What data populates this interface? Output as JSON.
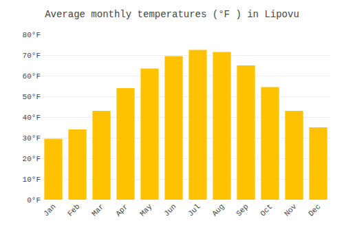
{
  "chart_data": {
    "type": "bar",
    "title": "Average monthly temperatures (°F ) in Lipovu",
    "categories": [
      "Jan",
      "Feb",
      "Mar",
      "Apr",
      "May",
      "Jun",
      "Jul",
      "Aug",
      "Sep",
      "Oct",
      "Nov",
      "Dec"
    ],
    "values": [
      29.5,
      34,
      43,
      54,
      63.5,
      69.5,
      72.5,
      71.5,
      65,
      54.5,
      43,
      35
    ],
    "color": "#FFC200",
    "ylim": [
      0,
      80
    ],
    "yticks": [
      {
        "value": 0,
        "label": "0°F"
      },
      {
        "value": 10,
        "label": "10°F"
      },
      {
        "value": 20,
        "label": "20°F"
      },
      {
        "value": 30,
        "label": "30°F"
      },
      {
        "value": 40,
        "label": "40°F"
      },
      {
        "value": 50,
        "label": "50°F"
      },
      {
        "value": 60,
        "label": "60°F"
      },
      {
        "value": 70,
        "label": "70°F"
      },
      {
        "value": 80,
        "label": "80°F"
      }
    ],
    "grid": true
  }
}
